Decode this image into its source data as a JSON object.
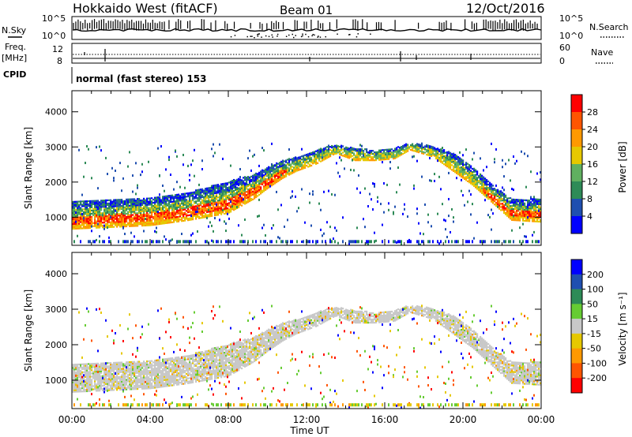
{
  "header": {
    "station": "Hokkaido West (fitACF)",
    "beam": "Beam 01",
    "date": "12/Oct/2016"
  },
  "top_panels": {
    "nsky_label": "N.Sky",
    "nsearch_label": "N.Search",
    "noise_ticks_left": [
      "10^5",
      "10^0"
    ],
    "noise_ticks_right": [
      "10^5",
      "10^0"
    ],
    "freq_label_1": "Freq.",
    "freq_label_2": "[MHz]",
    "freq_ticks": [
      "12",
      "8"
    ],
    "nave_ticks": [
      "60",
      "0"
    ],
    "nave_label": "Nave",
    "cpid_label": "CPID",
    "cpid_text": "normal (fast stereo) 153"
  },
  "colors": {
    "power_scale": [
      "#0000ff",
      "#1f4fb0",
      "#2e8b57",
      "#60b060",
      "#e6c800",
      "#ff9900",
      "#ff5500",
      "#ff0000"
    ],
    "velocity_scale": [
      "#0000ff",
      "#1f4fb0",
      "#2e8b57",
      "#66cc33",
      "#c8c8c8",
      "#e6c800",
      "#ff9900",
      "#ff5500",
      "#ff0000"
    ]
  },
  "chart_data": [
    {
      "type": "heatmap",
      "name": "power",
      "ylabel": "Slant Range [km]",
      "yticks": [
        "1000",
        "2000",
        "3000",
        "4000"
      ],
      "ylim": [
        200,
        4600
      ],
      "x": [
        "00:00",
        "04:00",
        "08:00",
        "12:00",
        "16:00",
        "20:00",
        "00:00"
      ],
      "xlim_hours": [
        0,
        24
      ],
      "colorbar_label": "Power [dB]",
      "colorbar_ticks": [
        "4",
        "8",
        "12",
        "16",
        "20",
        "24",
        "28"
      ],
      "colorbar_range": [
        0,
        32
      ]
    },
    {
      "type": "heatmap",
      "name": "velocity",
      "ylabel": "Slant Range [km]",
      "yticks": [
        "1000",
        "2000",
        "3000",
        "4000"
      ],
      "ylim": [
        200,
        4600
      ],
      "x": [
        "00:00",
        "04:00",
        "08:00",
        "12:00",
        "16:00",
        "20:00",
        "00:00"
      ],
      "xlim_hours": [
        0,
        24
      ],
      "xlabel": "Time UT",
      "colorbar_label": "Velocity [m s⁻¹]",
      "colorbar_ticks": [
        "200",
        "100",
        "50",
        "15",
        "-15",
        "-50",
        "-100",
        "-200"
      ]
    }
  ]
}
